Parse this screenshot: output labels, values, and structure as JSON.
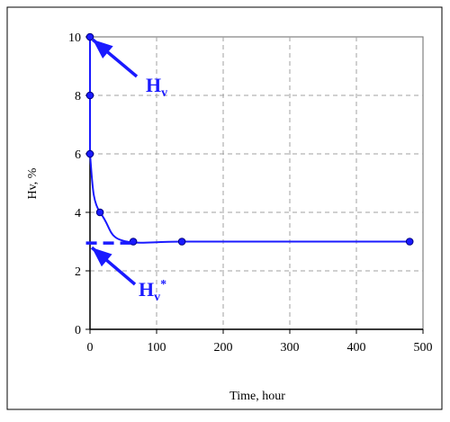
{
  "chart_data": {
    "type": "scatter",
    "title": "",
    "xlabel": "Time, hour",
    "ylabel": "Hv, %",
    "xlim": [
      0,
      500
    ],
    "ylim": [
      0,
      10
    ],
    "xticks": [
      0,
      100,
      200,
      300,
      400,
      500
    ],
    "yticks": [
      0,
      2,
      4,
      6,
      8,
      10
    ],
    "xtick_labels": [
      "0",
      "100",
      "200",
      "300",
      "400",
      "500"
    ],
    "ytick_labels": [
      "0",
      "2",
      "4",
      "6",
      "8",
      "10"
    ],
    "grid": true,
    "series": [
      {
        "x": [
          0,
          0,
          0,
          15,
          65,
          138,
          480
        ],
        "y": [
          10,
          8,
          6,
          4,
          3,
          3,
          3
        ],
        "markers": true,
        "smooth_line": true
      }
    ],
    "equilibrium_line": {
      "y": 2.95,
      "x_range": [
        -6,
        62
      ],
      "style": "dashed"
    },
    "annotations": [
      {
        "text": "H",
        "subscript": "v",
        "superscript": "",
        "points_to": {
          "x": 0,
          "y": 10
        }
      },
      {
        "text": "H",
        "subscript": "v",
        "superscript": "*",
        "points_to": {
          "x": 0,
          "y": 2.95
        }
      }
    ],
    "colors": {
      "data": "#1a1aff",
      "marker_edge": "#000080",
      "grid": "#a0a0a0",
      "axis": "#000000",
      "plot_border": "#808080"
    }
  }
}
